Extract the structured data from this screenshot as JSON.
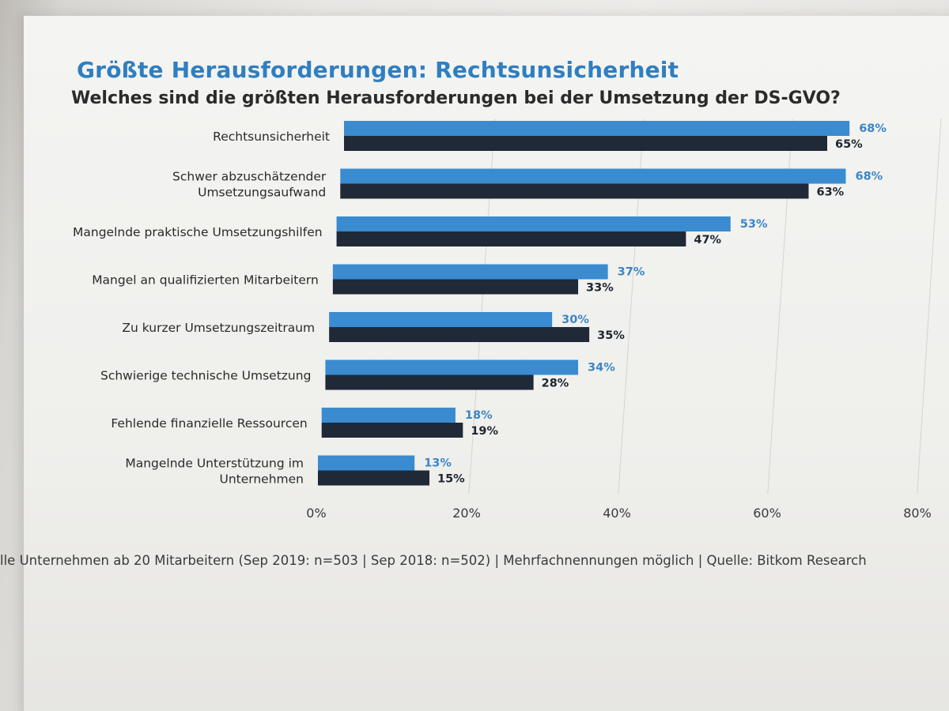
{
  "header": {
    "title": "Größte Herausforderungen: Rechtsunsicherheit",
    "subtitle": "Welches sind die größten Herausforderungen bei der Umsetzung der DS-GVO?"
  },
  "footer": {
    "note": "lle Unternehmen ab 20 Mitarbeitern (Sep 2019: n=503 | Sep 2018: n=502) | Mehrfachnennungen möglich | Quelle: Bitkom Research"
  },
  "chart_data": {
    "type": "bar",
    "orientation": "horizontal",
    "title": "Größte Herausforderungen: Rechtsunsicherheit",
    "subtitle": "Welches sind die größten Herausforderungen bei der Umsetzung der DS-GVO?",
    "categories": [
      [
        "Rechtsunsicherheit"
      ],
      [
        "Schwer abzuschätzender",
        "Umsetzungsaufwand"
      ],
      [
        "Mangelnde praktische Umsetzungshilfen"
      ],
      [
        "Mangel an qualifizierten Mitarbeitern"
      ],
      [
        "Zu kurzer Umsetzungszeitraum"
      ],
      [
        "Schwierige technische Umsetzung"
      ],
      [
        "Fehlende finanzielle Ressourcen"
      ],
      [
        "Mangelnde Unterstützung im",
        "Unternehmen"
      ]
    ],
    "series": [
      {
        "values": [
          68,
          68,
          53,
          37,
          30,
          34,
          18,
          13
        ],
        "labels": [
          "68%",
          "68%",
          "53%",
          "37%",
          "30%",
          "34%",
          "18%",
          "13%"
        ],
        "color": "#3a8bd0"
      },
      {
        "values": [
          65,
          63,
          47,
          33,
          35,
          28,
          19,
          15
        ],
        "labels": [
          "65%",
          "63%",
          "47%",
          "33%",
          "35%",
          "28%",
          "19%",
          "15%"
        ],
        "color": "#1f2937"
      }
    ],
    "x_ticks": [
      "0%",
      "20%",
      "40%",
      "60%",
      "80%"
    ],
    "xlim": [
      0,
      80
    ],
    "grid": true
  }
}
